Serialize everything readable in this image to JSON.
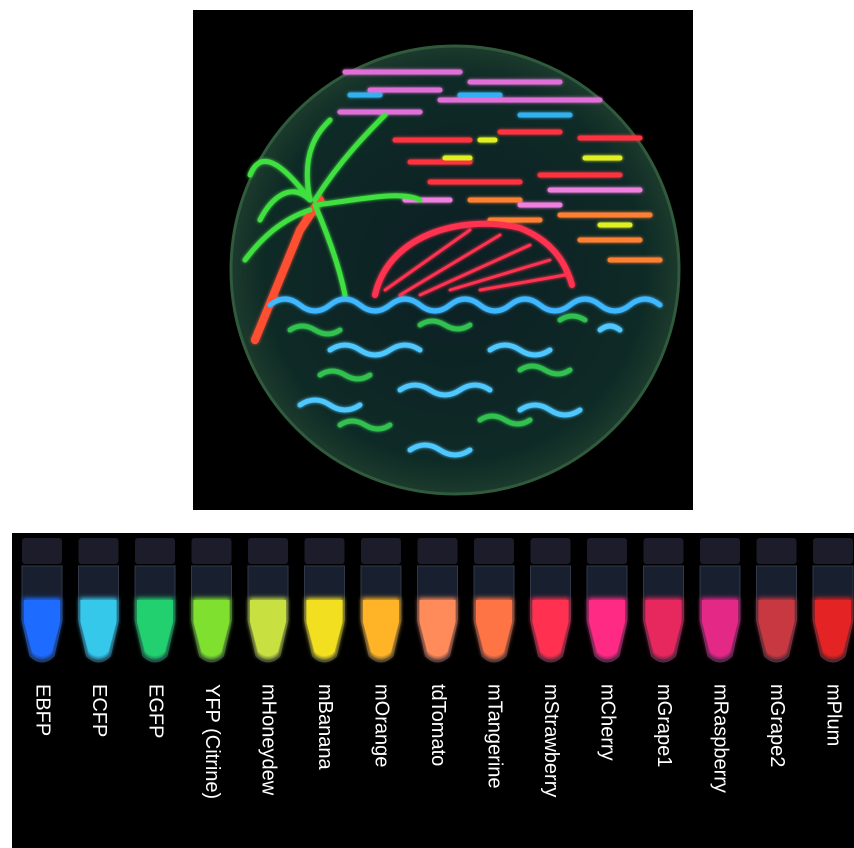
{
  "tubes": [
    "EBFP",
    "ECFP",
    "EGFP",
    "YFP (Citrine)",
    "mHoneydew",
    "mBanana",
    "mOrange",
    "tdTomato",
    "mTangerine",
    "mStrawberry",
    "mCherry",
    "mGrape1",
    "mRaspberry",
    "mGrape2",
    "mPlum"
  ]
}
